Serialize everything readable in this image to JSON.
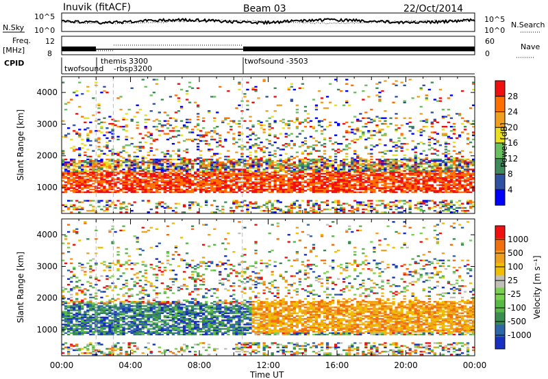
{
  "header": {
    "station": "Inuvik (fitACF)",
    "beam": "Beam 03",
    "date": "22/Oct/2014"
  },
  "top_panels": {
    "nsky_label": "N.Sky",
    "nsky_ticks": [
      "10^5",
      "10^0"
    ],
    "nsearch_label": "N.Search",
    "nsearch_ticks": [
      "10^5",
      "10^0"
    ],
    "freq_label_1": "Freq.",
    "freq_label_2": "[MHz]",
    "freq_ticks": [
      "12",
      "8"
    ],
    "nave_label": "Nave",
    "nave_ticks": [
      "60",
      "0"
    ],
    "cpid_label": "CPID",
    "cpid_entries": [
      {
        "time_hours": 0.0,
        "text": "twofsound"
      },
      {
        "time_hours": 2.0,
        "text": "themis 3300"
      },
      {
        "time_hours": 2.0,
        "text": "-rbsp3200"
      },
      {
        "time_hours": 10.5,
        "text": "twofsound -3503"
      }
    ]
  },
  "chart_data": [
    {
      "type": "heatmap",
      "title": "",
      "xlabel": "",
      "ylabel": "Slant Range [km]",
      "xlim_hours": [
        0,
        24
      ],
      "ylim_km": [
        180,
        4500
      ],
      "y_ticks": [
        "1000",
        "2000",
        "3000",
        "4000"
      ],
      "colorbar_label": "Power [dB]",
      "colorbar_ticks": [
        "4",
        "8",
        "12",
        "16",
        "20",
        "24",
        "28"
      ],
      "colorscale": [
        "#0000ff",
        "#3050a0",
        "#3e8a5a",
        "#6ac060",
        "#e8e020",
        "#f0a020",
        "#ff7000",
        "#f01010"
      ],
      "dashed_markers_hours": [
        2.0,
        3.0,
        10.5
      ]
    },
    {
      "type": "heatmap",
      "title": "",
      "xlabel": "Time UT",
      "ylabel": "Slant Range [km]",
      "xlim_hours": [
        0,
        24
      ],
      "ylim_km": [
        180,
        4500
      ],
      "x_ticks": [
        "00:00",
        "04:00",
        "08:00",
        "12:00",
        "16:00",
        "20:00",
        "00:00"
      ],
      "y_ticks": [
        "1000",
        "2000",
        "3000",
        "4000"
      ],
      "colorbar_label": "Velocity [m s⁻¹]",
      "colorbar_ticks": [
        "1000",
        "500",
        "100",
        "25",
        "-25",
        "-100",
        "-500",
        "-1000"
      ],
      "colorscale": [
        "#1830c0",
        "#2f66a8",
        "#3a8c50",
        "#58b848",
        "#7ad050",
        "#c0c0b8",
        "#f0c000",
        "#f0a020",
        "#f07010",
        "#f01010"
      ],
      "dashed_markers_hours": [
        2.0,
        3.0,
        10.5
      ]
    }
  ]
}
